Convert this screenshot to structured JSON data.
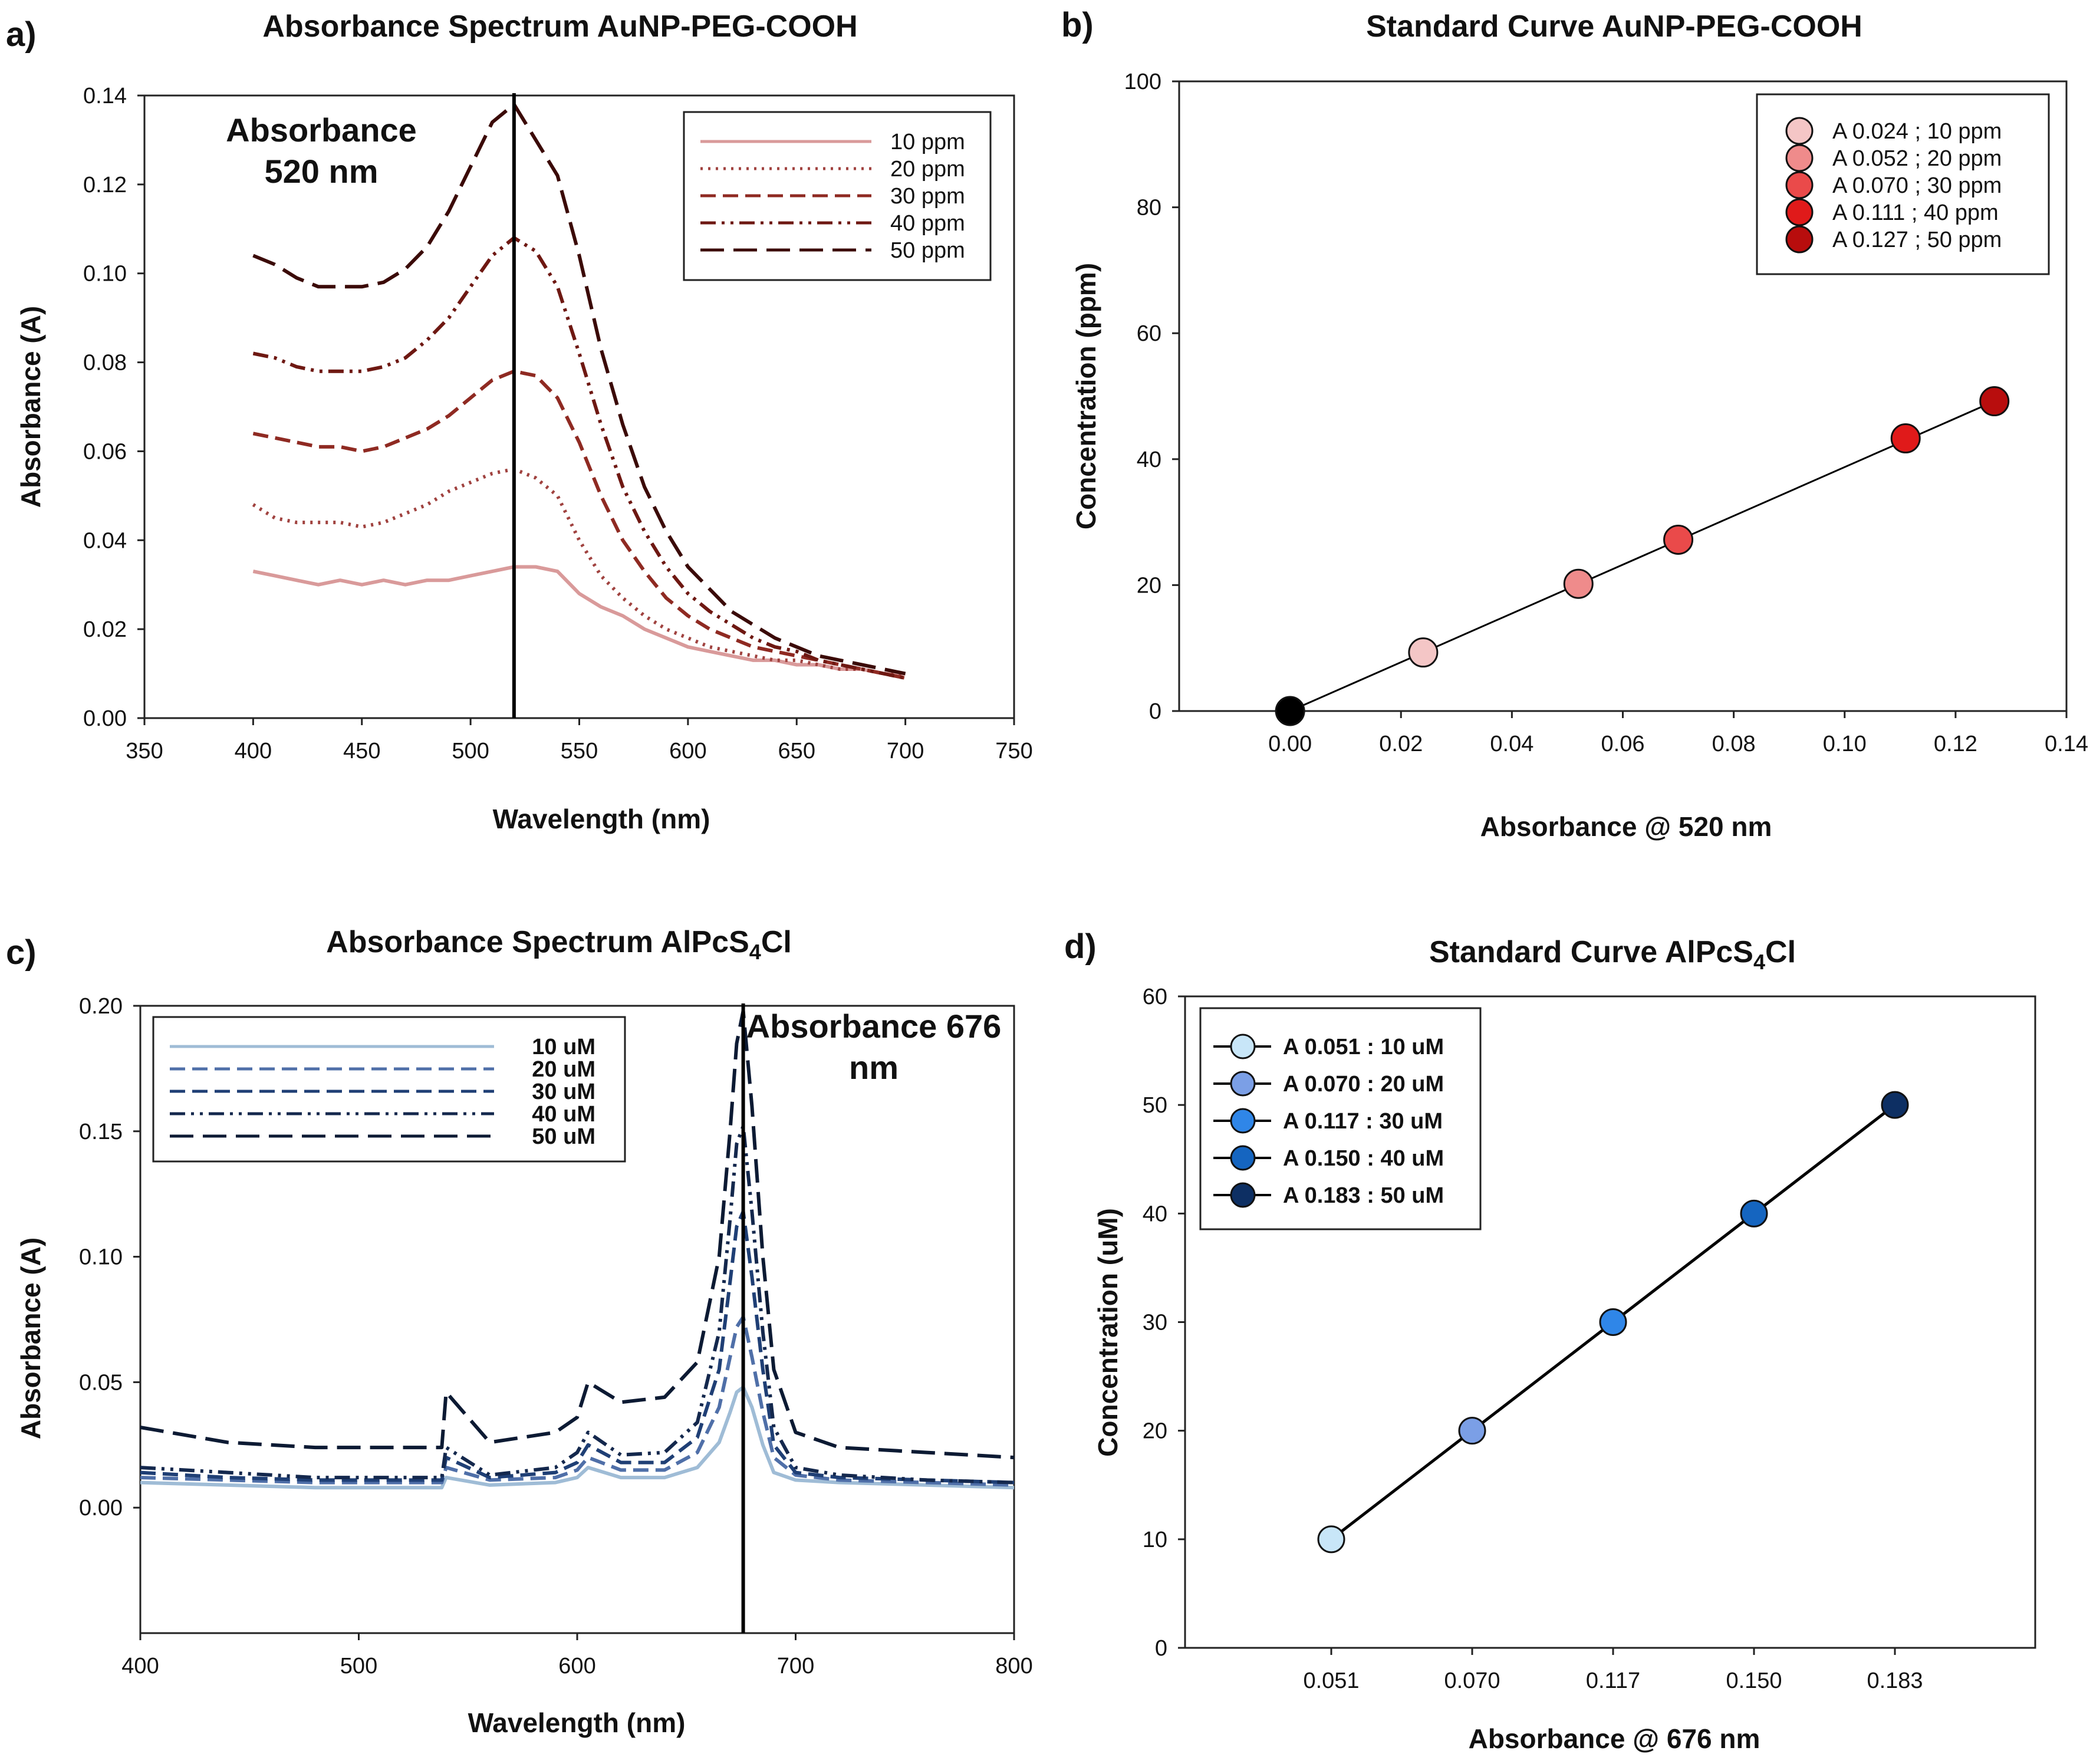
{
  "colors": {
    "a_10": "#d99a9a",
    "a_20": "#a0423f",
    "a_30": "#8f2a22",
    "a_40": "#6e1812",
    "a_50": "#3b0a07",
    "b_10": "#f4c6c6",
    "b_20": "#ef8b8b",
    "b_30": "#ea4a4a",
    "b_40": "#e01a1a",
    "b_50": "#b80d0d",
    "b_origin": "#000000",
    "c_10": "#9fbcd6",
    "c_20": "#4f6fa8",
    "c_30": "#1f3f75",
    "c_40": "#14284d",
    "c_50": "#0c1a33",
    "d_10": "#c8e6f8",
    "d_20": "#7b9fe6",
    "d_30": "#2f86e8",
    "d_40": "#1565c0",
    "d_50": "#0d2f63"
  },
  "chart_data": [
    {
      "panel": "a)",
      "type": "line",
      "title": "Absorbance Spectrum AuNP-PEG-COOH",
      "xlabel": "Wavelength (nm)",
      "ylabel": "Absorbance (A)",
      "xlim": [
        350,
        750
      ],
      "ylim": [
        0,
        0.14
      ],
      "xticks": [
        "350",
        "400",
        "450",
        "500",
        "550",
        "600",
        "650",
        "700",
        "750"
      ],
      "yticks": [
        "0.00",
        "0.02",
        "0.04",
        "0.06",
        "0.08",
        "0.10",
        "0.12",
        "0.14"
      ],
      "annotation": [
        "Absorbance",
        "520 nm"
      ],
      "marker_x": 520,
      "legend_position": "top-right",
      "series": [
        {
          "name": "10 ppm",
          "style": "solid",
          "color_key": "a_10",
          "x": [
            400,
            410,
            420,
            430,
            440,
            450,
            460,
            470,
            480,
            490,
            500,
            510,
            520,
            530,
            540,
            550,
            560,
            570,
            580,
            590,
            600,
            610,
            620,
            630,
            640,
            650,
            660,
            670,
            680,
            690,
            700
          ],
          "y": [
            0.033,
            0.032,
            0.031,
            0.03,
            0.031,
            0.03,
            0.031,
            0.03,
            0.031,
            0.031,
            0.032,
            0.033,
            0.034,
            0.034,
            0.033,
            0.028,
            0.025,
            0.023,
            0.02,
            0.018,
            0.016,
            0.015,
            0.014,
            0.013,
            0.013,
            0.012,
            0.012,
            0.011,
            0.011,
            0.01,
            0.01
          ]
        },
        {
          "name": "20 ppm",
          "style": "dotted",
          "color_key": "a_20",
          "x": [
            400,
            410,
            420,
            430,
            440,
            450,
            460,
            470,
            480,
            490,
            500,
            510,
            520,
            530,
            540,
            550,
            560,
            570,
            580,
            590,
            600,
            610,
            620,
            630,
            640,
            650,
            660,
            670,
            680,
            690,
            700
          ],
          "y": [
            0.048,
            0.045,
            0.044,
            0.044,
            0.044,
            0.043,
            0.044,
            0.046,
            0.048,
            0.051,
            0.053,
            0.055,
            0.056,
            0.054,
            0.05,
            0.04,
            0.032,
            0.027,
            0.023,
            0.02,
            0.018,
            0.016,
            0.015,
            0.014,
            0.013,
            0.013,
            0.012,
            0.011,
            0.011,
            0.01,
            0.01
          ]
        },
        {
          "name": "30 ppm",
          "style": "dashed",
          "color_key": "a_30",
          "x": [
            400,
            410,
            420,
            430,
            440,
            450,
            460,
            470,
            480,
            490,
            500,
            510,
            520,
            530,
            540,
            550,
            560,
            570,
            580,
            590,
            600,
            610,
            620,
            630,
            640,
            650,
            660,
            670,
            680,
            690,
            700
          ],
          "y": [
            0.064,
            0.063,
            0.062,
            0.061,
            0.061,
            0.06,
            0.061,
            0.063,
            0.065,
            0.068,
            0.072,
            0.076,
            0.078,
            0.077,
            0.072,
            0.062,
            0.05,
            0.04,
            0.033,
            0.027,
            0.023,
            0.02,
            0.018,
            0.016,
            0.015,
            0.014,
            0.013,
            0.012,
            0.011,
            0.01,
            0.009
          ]
        },
        {
          "name": "40 ppm",
          "style": "dashdotdot",
          "color_key": "a_40",
          "x": [
            400,
            410,
            420,
            430,
            440,
            450,
            460,
            470,
            480,
            490,
            500,
            510,
            520,
            530,
            540,
            550,
            560,
            570,
            580,
            590,
            600,
            610,
            620,
            630,
            640,
            650,
            660,
            670,
            680,
            690,
            700
          ],
          "y": [
            0.082,
            0.081,
            0.079,
            0.078,
            0.078,
            0.078,
            0.079,
            0.081,
            0.085,
            0.09,
            0.097,
            0.104,
            0.108,
            0.105,
            0.097,
            0.082,
            0.066,
            0.052,
            0.042,
            0.034,
            0.028,
            0.024,
            0.021,
            0.018,
            0.016,
            0.015,
            0.013,
            0.012,
            0.011,
            0.01,
            0.009
          ]
        },
        {
          "name": "50 ppm",
          "style": "longdash",
          "color_key": "a_50",
          "x": [
            400,
            410,
            420,
            430,
            440,
            450,
            460,
            470,
            480,
            490,
            500,
            510,
            520,
            530,
            540,
            550,
            560,
            570,
            580,
            590,
            600,
            610,
            620,
            630,
            640,
            650,
            660,
            670,
            680,
            690,
            700
          ],
          "y": [
            0.104,
            0.102,
            0.099,
            0.097,
            0.097,
            0.097,
            0.098,
            0.101,
            0.106,
            0.114,
            0.124,
            0.134,
            0.138,
            0.13,
            0.122,
            0.104,
            0.083,
            0.066,
            0.052,
            0.042,
            0.034,
            0.029,
            0.024,
            0.021,
            0.018,
            0.016,
            0.014,
            0.013,
            0.012,
            0.011,
            0.01
          ]
        }
      ]
    },
    {
      "panel": "b)",
      "type": "scatter",
      "title": "Standard Curve AuNP-PEG-COOH",
      "xlabel": "Absorbance @ 520 nm",
      "ylabel": "Concentration (ppm)",
      "xlim": [
        -0.02,
        0.14
      ],
      "ylim": [
        0,
        100
      ],
      "xticks": [
        "0.00",
        "0.02",
        "0.04",
        "0.06",
        "0.08",
        "0.10",
        "0.12",
        "0.14"
      ],
      "yticks": [
        "0",
        "20",
        "40",
        "60",
        "80",
        "100"
      ],
      "legend_position": "top-right",
      "fit_line": true,
      "points": [
        {
          "x": 0.0,
          "y": 0,
          "label": "",
          "color_key": "b_origin"
        },
        {
          "x": 0.024,
          "y": 9.3,
          "label": "A 0.024 ; 10 ppm",
          "color_key": "b_10"
        },
        {
          "x": 0.052,
          "y": 20.2,
          "label": "A 0.052 ; 20 ppm",
          "color_key": "b_20"
        },
        {
          "x": 0.07,
          "y": 27.2,
          "label": "A 0.070 ; 30 ppm",
          "color_key": "b_30"
        },
        {
          "x": 0.111,
          "y": 43.3,
          "label": "A 0.111 ; 40 ppm",
          "color_key": "b_40"
        },
        {
          "x": 0.127,
          "y": 49.2,
          "label": "A 0.127 ; 50 ppm",
          "color_key": "b_50"
        }
      ]
    },
    {
      "panel": "c)",
      "type": "line",
      "title": "Absorbance Spectrum AlPcS",
      "title_sub": "4",
      "title_end": "Cl",
      "xlabel": "Wavelength (nm)",
      "ylabel": "Absorbance (A)",
      "xlim": [
        400,
        800
      ],
      "ylim": [
        -0.05,
        0.2
      ],
      "xticks": [
        "400",
        "500",
        "600",
        "700",
        "800"
      ],
      "yticks": [
        "0.00",
        "0.05",
        "0.10",
        "0.15",
        "0.20"
      ],
      "annotation": [
        "Absorbance 676",
        "nm"
      ],
      "marker_x": 676,
      "legend_position": "top-left",
      "series": [
        {
          "name": "10 uM",
          "style": "solid",
          "color_key": "c_10",
          "x": [
            400,
            440,
            480,
            520,
            538,
            540,
            560,
            590,
            600,
            605,
            620,
            640,
            655,
            665,
            670,
            673,
            676,
            680,
            685,
            690,
            700,
            720,
            760,
            800
          ],
          "y": [
            0.01,
            0.009,
            0.008,
            0.008,
            0.008,
            0.012,
            0.009,
            0.01,
            0.012,
            0.016,
            0.012,
            0.012,
            0.016,
            0.026,
            0.038,
            0.046,
            0.048,
            0.04,
            0.025,
            0.014,
            0.011,
            0.01,
            0.009,
            0.008
          ]
        },
        {
          "name": "20 uM",
          "style": "dashed",
          "color_key": "c_20",
          "x": [
            400,
            440,
            480,
            520,
            538,
            540,
            560,
            590,
            600,
            605,
            620,
            640,
            655,
            665,
            670,
            673,
            676,
            680,
            685,
            690,
            700,
            720,
            760,
            800
          ],
          "y": [
            0.012,
            0.011,
            0.01,
            0.01,
            0.01,
            0.016,
            0.011,
            0.012,
            0.015,
            0.02,
            0.015,
            0.015,
            0.022,
            0.04,
            0.06,
            0.072,
            0.076,
            0.06,
            0.038,
            0.02,
            0.013,
            0.011,
            0.01,
            0.009
          ]
        },
        {
          "name": "30 uM",
          "style": "dashed",
          "color_key": "c_30",
          "x": [
            400,
            440,
            480,
            520,
            538,
            540,
            560,
            590,
            600,
            605,
            620,
            640,
            655,
            665,
            670,
            673,
            676,
            680,
            685,
            690,
            700,
            720,
            760,
            800
          ],
          "y": [
            0.014,
            0.012,
            0.011,
            0.011,
            0.011,
            0.02,
            0.012,
            0.014,
            0.018,
            0.025,
            0.018,
            0.018,
            0.028,
            0.055,
            0.09,
            0.112,
            0.118,
            0.092,
            0.055,
            0.025,
            0.014,
            0.012,
            0.011,
            0.01
          ]
        },
        {
          "name": "40 uM",
          "style": "dashdotdot",
          "color_key": "c_40",
          "x": [
            400,
            440,
            480,
            520,
            538,
            540,
            560,
            590,
            600,
            605,
            620,
            640,
            655,
            665,
            670,
            673,
            676,
            680,
            685,
            690,
            700,
            720,
            760,
            800
          ],
          "y": [
            0.016,
            0.014,
            0.012,
            0.012,
            0.012,
            0.024,
            0.013,
            0.016,
            0.022,
            0.03,
            0.021,
            0.022,
            0.034,
            0.07,
            0.115,
            0.145,
            0.152,
            0.118,
            0.07,
            0.032,
            0.016,
            0.013,
            0.011,
            0.01
          ]
        },
        {
          "name": "50 uM",
          "style": "longdash",
          "color_key": "c_50",
          "x": [
            400,
            440,
            480,
            520,
            538,
            540,
            560,
            590,
            600,
            605,
            620,
            640,
            655,
            665,
            670,
            673,
            676,
            680,
            685,
            690,
            700,
            720,
            760,
            800
          ],
          "y": [
            0.032,
            0.026,
            0.024,
            0.024,
            0.024,
            0.046,
            0.026,
            0.03,
            0.036,
            0.05,
            0.042,
            0.044,
            0.058,
            0.1,
            0.15,
            0.185,
            0.198,
            0.16,
            0.1,
            0.055,
            0.03,
            0.024,
            0.022,
            0.02
          ]
        }
      ]
    },
    {
      "panel": "d)",
      "type": "scatter",
      "title": "Standard Curve AlPcS",
      "title_sub": "4",
      "title_end": "Cl",
      "xlabel": "Absorbance @ 676 nm",
      "ylabel": "Concentration (uM)",
      "x_categories": [
        "0.051",
        "0.070",
        "0.117",
        "0.150",
        "0.183"
      ],
      "ylim": [
        0,
        60
      ],
      "yticks": [
        "0",
        "10",
        "20",
        "30",
        "40",
        "50",
        "60"
      ],
      "legend_position": "top-left",
      "fit_line": true,
      "points": [
        {
          "x": "0.051",
          "y": 10,
          "label": "A 0.051 : 10 uM",
          "color_key": "d_10"
        },
        {
          "x": "0.070",
          "y": 20,
          "label": "A 0.070 : 20 uM",
          "color_key": "d_20"
        },
        {
          "x": "0.117",
          "y": 30,
          "label": "A 0.117 : 30 uM",
          "color_key": "d_30"
        },
        {
          "x": "0.150",
          "y": 40,
          "label": "A 0.150 : 40 uM",
          "color_key": "d_40"
        },
        {
          "x": "0.183",
          "y": 50,
          "label": "A 0.183 : 50 uM",
          "color_key": "d_50"
        }
      ]
    }
  ]
}
